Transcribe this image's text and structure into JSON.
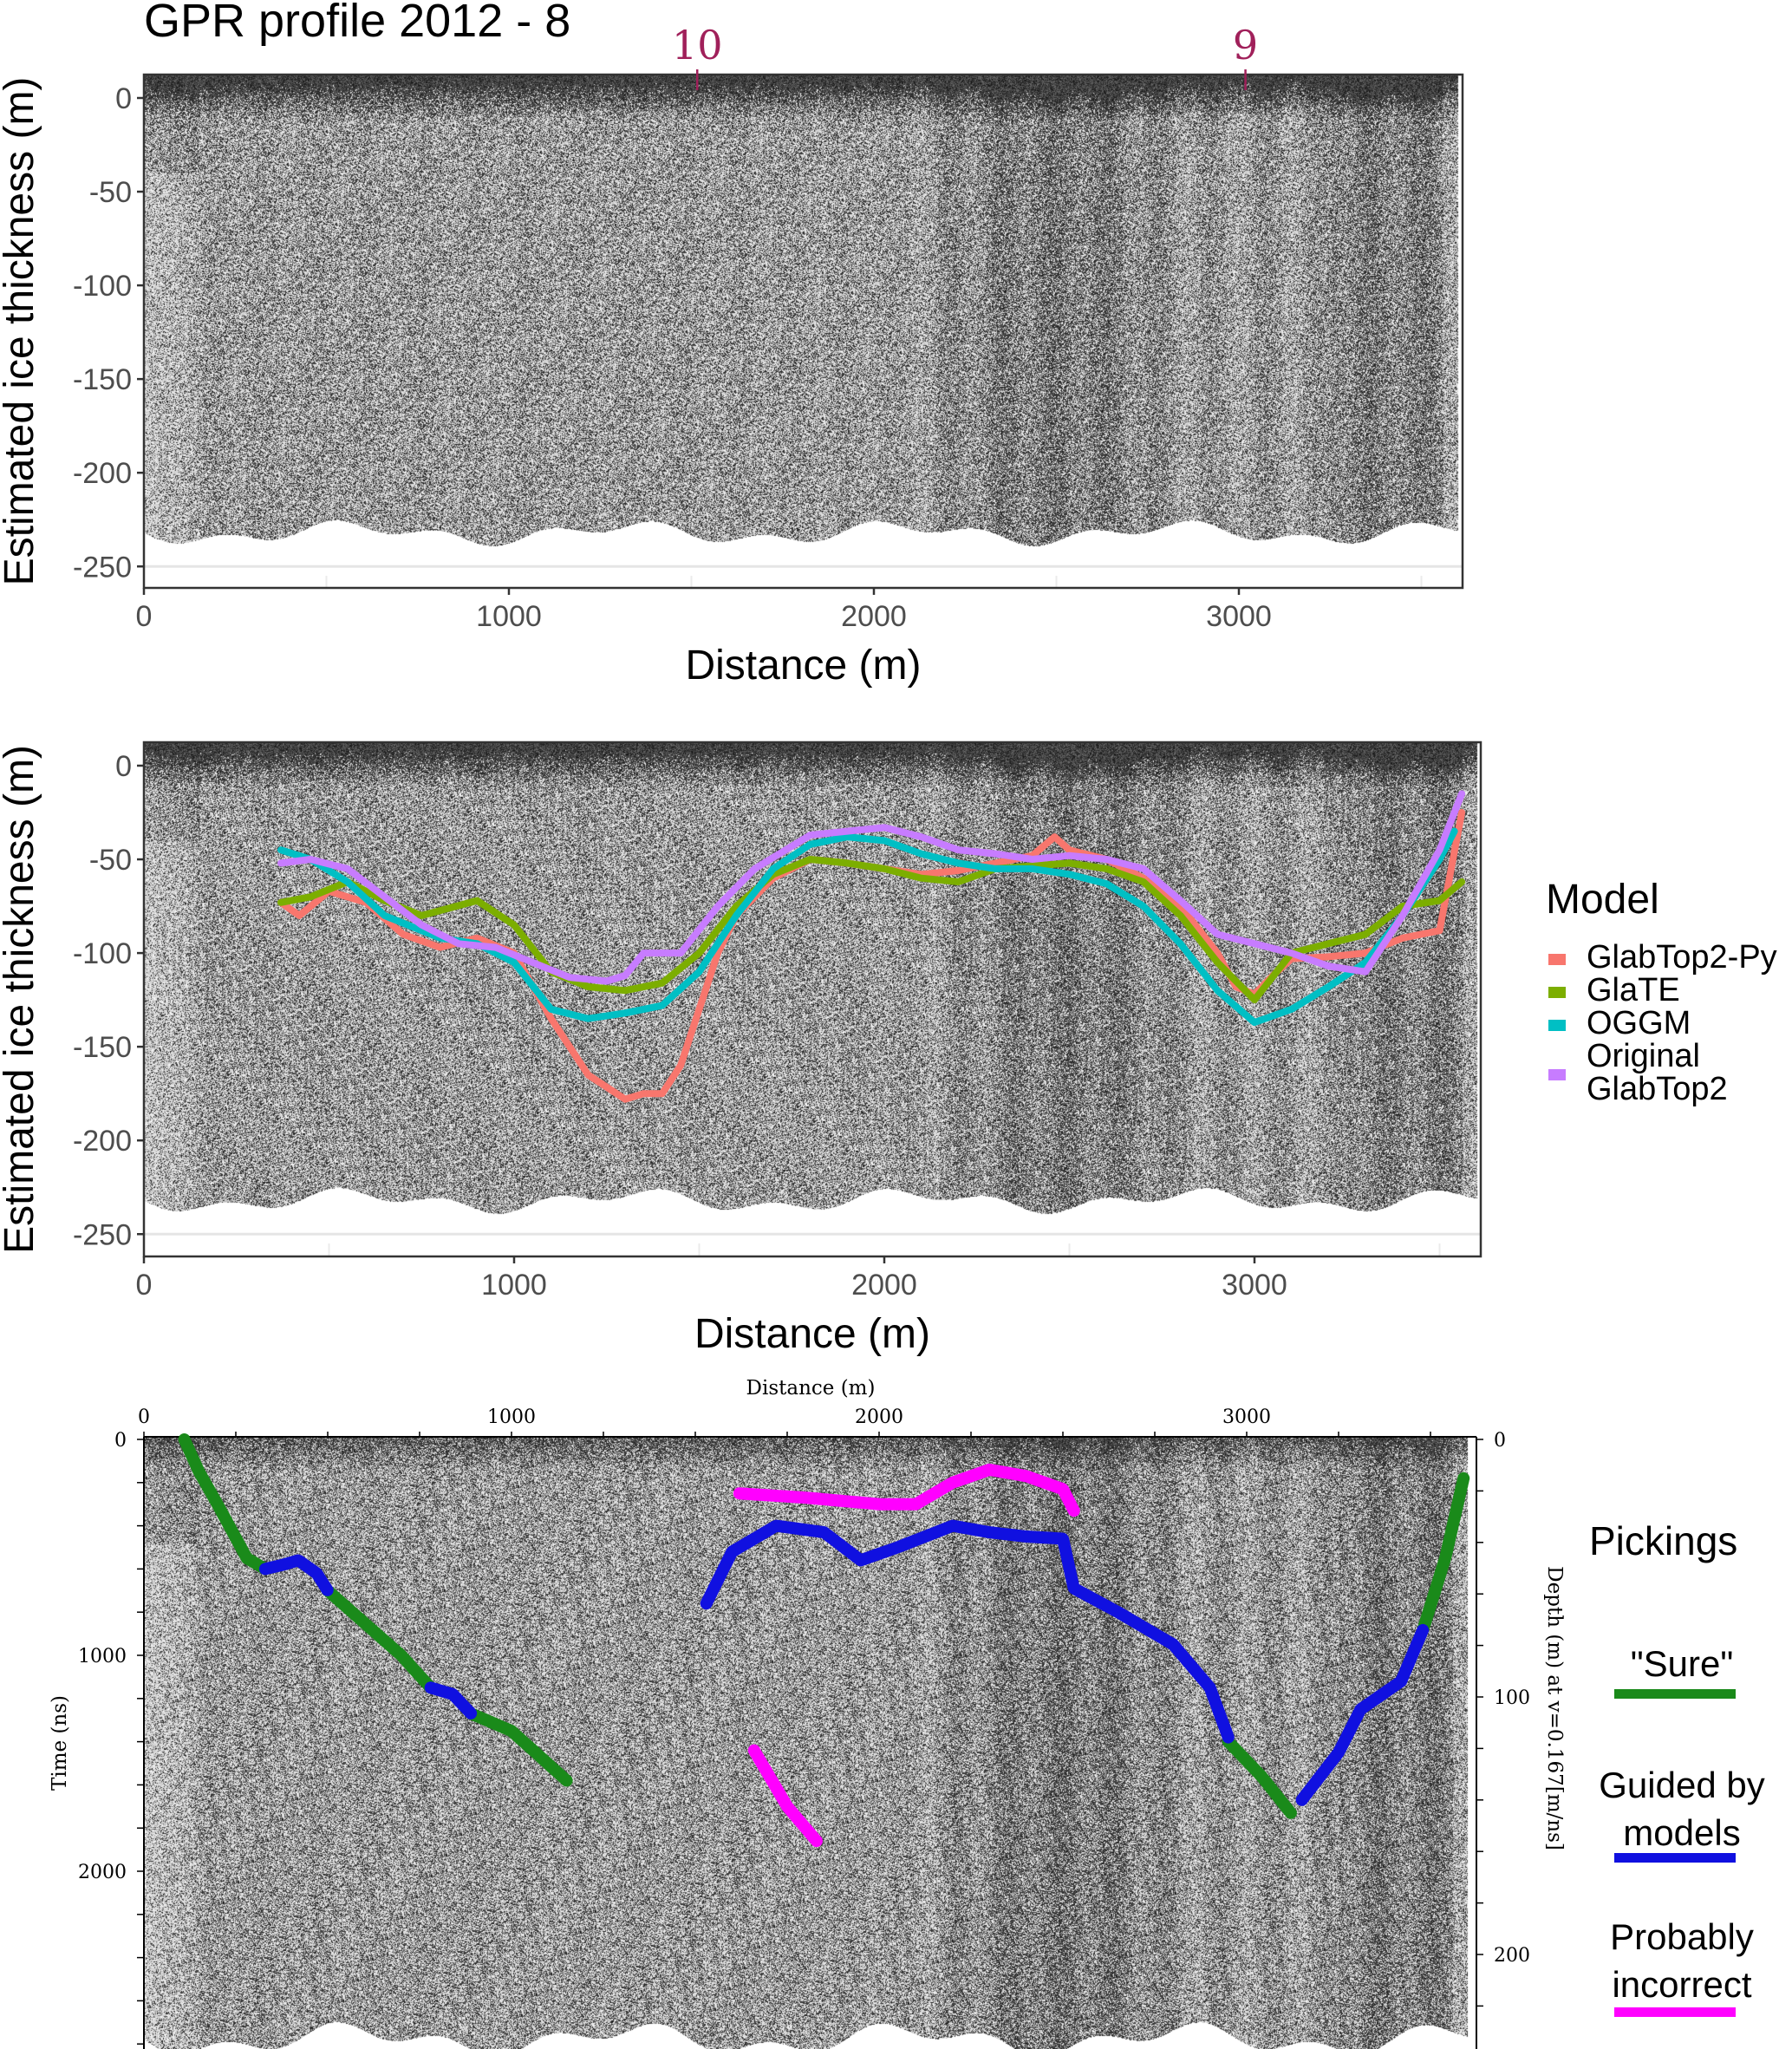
{
  "chart_data": [
    {
      "type": "line",
      "title": "GPR profile 2012 - 8",
      "xlabel": "Distance (m)",
      "ylabel": "Estimated ice thickness (m)",
      "xlim": [
        0,
        3610
      ],
      "ylim": [
        -260,
        8
      ],
      "xticks": [
        "0",
        "1000",
        "2000",
        "3000"
      ],
      "xtick_values": [
        0,
        1000,
        2000,
        3000
      ],
      "yticks": [
        "0",
        "-50",
        "-100",
        "-150",
        "-200",
        "-250"
      ],
      "ytick_values": [
        0,
        -50,
        -100,
        -150,
        -200,
        -250
      ],
      "grid": true,
      "background": "GPR radargram",
      "markers": [
        {
          "label": "10",
          "x": 1516,
          "color": "#a0205a"
        },
        {
          "label": "9",
          "x": 3018,
          "color": "#a0205a"
        }
      ]
    },
    {
      "type": "line",
      "xlabel": "Distance (m)",
      "ylabel": "Estimated ice thickness (m)",
      "xlim": [
        0,
        3610
      ],
      "ylim": [
        -260,
        8
      ],
      "xticks": [
        "0",
        "1000",
        "2000",
        "3000"
      ],
      "xtick_values": [
        0,
        1000,
        2000,
        3000
      ],
      "yticks": [
        "0",
        "-50",
        "-100",
        "-150",
        "-200",
        "-250"
      ],
      "ytick_values": [
        0,
        -50,
        -100,
        -150,
        -200,
        -250
      ],
      "grid": true,
      "background": "GPR radargram",
      "legend": {
        "title": "Model",
        "placement": "right"
      },
      "series": [
        {
          "name": "GlabTop2-Py",
          "color": "#F8766D",
          "x": [
            370,
            420,
            500,
            600,
            700,
            800,
            900,
            1000,
            1100,
            1200,
            1300,
            1350,
            1400,
            1450,
            1500,
            1550,
            1600,
            1700,
            1800,
            1900,
            2000,
            2100,
            2200,
            2300,
            2400,
            2460,
            2500,
            2600,
            2700,
            2800,
            2900,
            2950,
            3000,
            3050,
            3100,
            3200,
            3300,
            3400,
            3500,
            3560
          ],
          "y": [
            -73,
            -80,
            -67,
            -73,
            -90,
            -97,
            -92,
            -100,
            -135,
            -165,
            -178,
            -175,
            -175,
            -160,
            -130,
            -100,
            -80,
            -60,
            -50,
            -52,
            -55,
            -58,
            -56,
            -52,
            -48,
            -38,
            -45,
            -50,
            -60,
            -75,
            -100,
            -118,
            -122,
            -112,
            -103,
            -102,
            -100,
            -92,
            -88,
            -25
          ]
        },
        {
          "name": "GlaTE",
          "color": "#7CAE00",
          "x": [
            370,
            450,
            550,
            650,
            750,
            900,
            1000,
            1100,
            1200,
            1300,
            1400,
            1500,
            1600,
            1700,
            1800,
            1900,
            2000,
            2100,
            2200,
            2300,
            2500,
            2600,
            2700,
            2800,
            2900,
            3000,
            3100,
            3200,
            3300,
            3400,
            3500,
            3560
          ],
          "y": [
            -73,
            -70,
            -62,
            -72,
            -80,
            -72,
            -85,
            -110,
            -118,
            -120,
            -116,
            -100,
            -75,
            -58,
            -50,
            -52,
            -55,
            -60,
            -62,
            -55,
            -52,
            -55,
            -62,
            -80,
            -105,
            -125,
            -100,
            -95,
            -90,
            -75,
            -72,
            -62
          ]
        },
        {
          "name": "OGGM",
          "color": "#00BFC4",
          "x": [
            370,
            450,
            550,
            650,
            800,
            900,
            1000,
            1100,
            1200,
            1300,
            1400,
            1500,
            1600,
            1700,
            1800,
            1900,
            2000,
            2100,
            2200,
            2300,
            2400,
            2500,
            2600,
            2700,
            2800,
            2900,
            3000,
            3100,
            3200,
            3300,
            3400,
            3500,
            3540
          ],
          "y": [
            -45,
            -50,
            -62,
            -80,
            -92,
            -95,
            -105,
            -130,
            -135,
            -132,
            -128,
            -110,
            -80,
            -55,
            -42,
            -38,
            -40,
            -47,
            -52,
            -55,
            -55,
            -58,
            -63,
            -75,
            -95,
            -120,
            -137,
            -130,
            -118,
            -105,
            -80,
            -50,
            -35
          ]
        },
        {
          "name": "Original GlabTop2",
          "label_lines": [
            "Original",
            "GlabTop2"
          ],
          "color": "#C77CFF",
          "x": [
            370,
            450,
            550,
            650,
            750,
            850,
            950,
            1050,
            1150,
            1250,
            1300,
            1350,
            1450,
            1550,
            1650,
            1800,
            1900,
            2000,
            2100,
            2200,
            2300,
            2400,
            2500,
            2600,
            2700,
            2800,
            2900,
            3000,
            3100,
            3200,
            3300,
            3400,
            3500,
            3560
          ],
          "y": [
            -52,
            -50,
            -55,
            -70,
            -85,
            -95,
            -97,
            -105,
            -113,
            -115,
            -112,
            -100,
            -100,
            -75,
            -55,
            -37,
            -35,
            -33,
            -38,
            -45,
            -47,
            -50,
            -48,
            -50,
            -55,
            -72,
            -90,
            -95,
            -100,
            -107,
            -110,
            -80,
            -45,
            -15
          ]
        }
      ]
    },
    {
      "type": "scatter",
      "xlabel": "Distance (m)",
      "ylabel": "Time (ns)",
      "y2label": "Depth (m) at v=0.167[m/ns]",
      "xlim": [
        0,
        3620
      ],
      "ylim": [
        2840,
        0
      ],
      "xticks": [
        "0",
        "1000",
        "2000",
        "3000"
      ],
      "xtick_values": [
        0,
        1000,
        2000,
        3000
      ],
      "yticks": [
        "0",
        "1000",
        "2000"
      ],
      "ytick_values": [
        0,
        1000,
        2000
      ],
      "y2ticks": [
        "0",
        "100",
        "200"
      ],
      "y2tick_values": [
        0,
        100,
        200
      ],
      "background": "GPR radargram",
      "legend": {
        "title": "Pickings",
        "placement": "right"
      },
      "series": [
        {
          "name": "\"Sure\"",
          "color": "#1a8a1a",
          "segments": [
            {
              "x": [
                110,
                150,
                200,
                280,
                330
              ],
              "y": [
                0,
                150,
                300,
                550,
                600
              ]
            },
            {
              "x": [
                500,
                600,
                700,
                780
              ],
              "y": [
                700,
                850,
                1000,
                1150
              ]
            },
            {
              "x": [
                890,
                1000,
                1150
              ],
              "y": [
                1270,
                1350,
                1580
              ]
            },
            {
              "x": [
                2950,
                3040,
                3120
              ],
              "y": [
                1400,
                1560,
                1730
              ]
            },
            {
              "x": [
                3480,
                3540,
                3590
              ],
              "y": [
                880,
                550,
                180
              ]
            }
          ]
        },
        {
          "name": "Guided by models",
          "color": "#1010e0",
          "segments": [
            {
              "x": [
                330,
                380,
                420,
                470,
                500
              ],
              "y": [
                600,
                580,
                560,
                620,
                700
              ]
            },
            {
              "x": [
                780,
                840,
                890
              ],
              "y": [
                1150,
                1180,
                1270
              ]
            },
            {
              "x": [
                1530,
                1600,
                1720,
                1850,
                1950,
                2050,
                2200,
                2300,
                2400,
                2500,
                2530,
                2650,
                2800,
                2900,
                2950
              ],
              "y": [
                760,
                520,
                400,
                430,
                560,
                500,
                400,
                430,
                450,
                460,
                690,
                800,
                950,
                1150,
                1380
              ]
            },
            {
              "x": [
                3150,
                3250,
                3310,
                3420,
                3480
              ],
              "y": [
                1670,
                1450,
                1250,
                1120,
                880
              ]
            }
          ]
        },
        {
          "name": "Probably incorrect",
          "color": "#ff00ff",
          "segments": [
            {
              "x": [
                1620,
                1800,
                2000,
                2100,
                2200,
                2300,
                2400,
                2500,
                2530
              ],
              "y": [
                250,
                270,
                300,
                300,
                200,
                140,
                170,
                230,
                330
              ]
            },
            {
              "x": [
                1660,
                1750,
                1830
              ],
              "y": [
                1440,
                1700,
                1860
              ]
            }
          ]
        }
      ]
    }
  ]
}
